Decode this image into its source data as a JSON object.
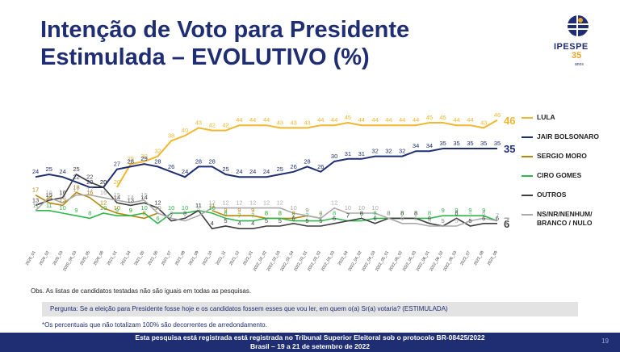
{
  "header": {
    "title_line1": "Intenção de Voto para Presidente",
    "title_line2": "Estimulada – EVOLUTIVO (%)",
    "logo_name": "IPESPE",
    "logo_years": "35",
    "logo_anos": "anos"
  },
  "colors": {
    "lula": "#f0b72f",
    "bolsonaro": "#1f2e73",
    "moro": "#b8860b",
    "ciro": "#2eb84a",
    "outros": "#3d3d3d",
    "ns": "#aaaaaa",
    "brand": "#1f2e73"
  },
  "chart_data": {
    "type": "line",
    "categories": [
      "2020_01",
      "2020_02",
      "2020_03",
      "2020_04_03",
      "2020_05",
      "2020_06",
      "2021_01",
      "2021_04",
      "2021_05",
      "2021_06",
      "2021_07",
      "2021_08",
      "2021_09",
      "2021_10",
      "2021_11",
      "2021_12",
      "2022_01",
      "2022_02_02",
      "2022_02_03",
      "2022_02_04",
      "2022_03_01",
      "2022_03_02",
      "2022_03_03",
      "2022_04",
      "2022_04_02",
      "2022_04_03",
      "2022_05_01",
      "2022_05_02",
      "2022_05_03",
      "2022_06_01",
      "2022_06_02",
      "2022_06_03",
      "2022_07",
      "2022_08",
      "2022_09"
    ],
    "series": [
      {
        "name": "LULA",
        "key": "lula",
        "values": [
          null,
          null,
          null,
          null,
          null,
          null,
          20,
          29,
          30,
          32,
          38,
          40,
          43,
          42,
          42,
          44,
          44,
          44,
          43,
          43,
          43,
          44,
          44,
          45,
          44,
          44,
          44,
          44,
          44,
          45,
          45,
          44,
          44,
          43,
          46
        ]
      },
      {
        "name": "JAIR BOLSONARO",
        "key": "bolsonaro",
        "values": [
          24,
          25,
          24,
          22,
          20,
          20,
          27,
          28,
          29,
          28,
          26,
          24,
          28,
          28,
          25,
          24,
          24,
          24,
          25,
          26,
          28,
          26,
          30,
          31,
          31,
          32,
          32,
          32,
          34,
          34,
          35,
          35,
          35,
          35,
          35
        ]
      },
      {
        "name": "SERGIO MORO",
        "key": "moro",
        "values": [
          17,
          14,
          13,
          18,
          16,
          12,
          10,
          9,
          8,
          10,
          null,
          null,
          null,
          11,
          9,
          9,
          9,
          8,
          8,
          8,
          9,
          8,
          null,
          null,
          null,
          null,
          null,
          null,
          null,
          null,
          null,
          null,
          null,
          null,
          null
        ]
      },
      {
        "name": "CIRO GOMES",
        "key": "ciro",
        "values": [
          11,
          11,
          10,
          9,
          8,
          10,
          9,
          9,
          10,
          6,
          10,
          10,
          11,
          10,
          8,
          7,
          7,
          8,
          8,
          7,
          7,
          7,
          8,
          7,
          7,
          8,
          8,
          8,
          8,
          8,
          9,
          9,
          9,
          9,
          7
        ]
      },
      {
        "name": "OUTROS",
        "key": "outros",
        "values": [
          13,
          15,
          16,
          25,
          22,
          20,
          14,
          13,
          14,
          12,
          7,
          8,
          11,
          4,
          5,
          4,
          4,
          5,
          5,
          6,
          5,
          5,
          6,
          7,
          8,
          6,
          8,
          8,
          8,
          6,
          5,
          8,
          5,
          6,
          6
        ]
      },
      {
        "name": "NS/NR/NENHUM/ BRANCO / NULO",
        "key": "ns",
        "values": [
          11,
          16,
          14,
          17,
          17,
          16,
          15,
          14,
          15,
          10,
          8,
          7,
          9,
          12,
          12,
          12,
          12,
          12,
          12,
          10,
          9,
          8,
          12,
          10,
          10,
          10,
          8,
          6,
          6,
          5,
          5,
          5,
          7,
          8,
          7
        ]
      }
    ],
    "ylim": [
      0,
      50
    ],
    "grid": false,
    "legend": "right",
    "end_labels": {
      "lula": "46",
      "bolsonaro": "35",
      "ciro": "7",
      "outros": "6",
      "ns": "7"
    }
  },
  "legend": [
    "LULA",
    "JAIR BOLSONARO",
    "SERGIO MORO",
    "CIRO GOMES",
    "OUTROS",
    "NS/NR/NENHUM/ BRANCO / NULO"
  ],
  "obs": "Obs. As listas de candidatos testadas não são iguais em todas as pesquisas.",
  "question": "Pergunta:  Se a eleição para Presidente fosse hoje e os candidatos fossem esses que vou ler, em quem o(a) Sr(a) votaria? (ESTIMULADA)",
  "note": "*Os percentuais que não totalizam 100% são decorrentes de arredondamento.",
  "footer": {
    "line1": "Esta pesquisa está registrada está registrada no Tribunal Superior Eleitoral sob o protocolo BR-08425/2022",
    "line2": "Brasil – 19 a 21 de setembro de 2022"
  },
  "page_number": "19"
}
